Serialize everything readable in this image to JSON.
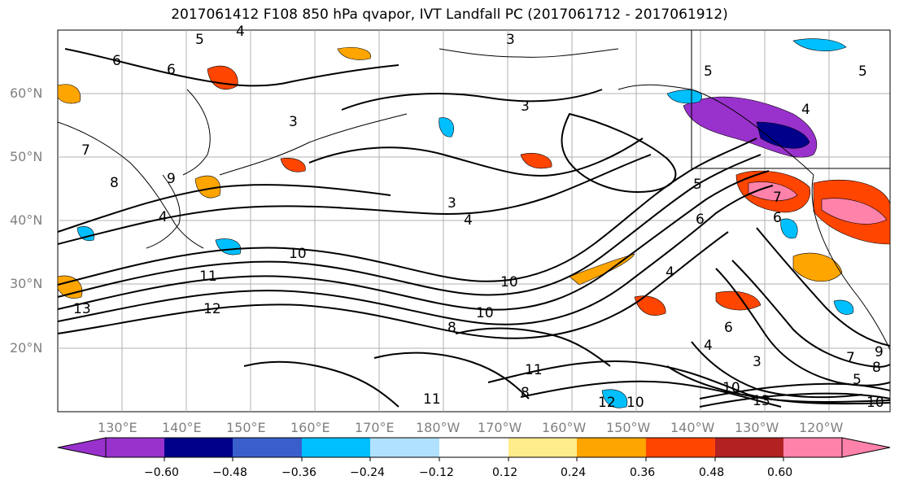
{
  "title": "2017061412 F108 850 hPa qvapor, IVT Landfall PC (2017061712 - 2017061912)",
  "lat_labels": [
    "60°N",
    "50°N",
    "40°N",
    "30°N",
    "20°N"
  ],
  "lon_labels": [
    "130°E",
    "140°E",
    "150°E",
    "160°E",
    "170°E",
    "180°W",
    "170°W",
    "160°W",
    "150°W",
    "140°W",
    "130°W",
    "120°W"
  ],
  "contour_labels": [
    "5",
    "6",
    "3",
    "4",
    "7",
    "8",
    "9",
    "10",
    "11",
    "12",
    "13"
  ],
  "colorbar": {
    "ticks": [
      "−0.60",
      "−0.48",
      "−0.36",
      "−0.24",
      "−0.12",
      "0.12",
      "0.24",
      "0.36",
      "0.48",
      "0.60"
    ],
    "colors": [
      "#9932cc",
      "#00008b",
      "#3a5fcd",
      "#00bfff",
      "#b0e2ff",
      "#ffffff",
      "#ffec8b",
      "#ffa500",
      "#ff4500",
      "#b22222",
      "#ff82ab"
    ]
  }
}
